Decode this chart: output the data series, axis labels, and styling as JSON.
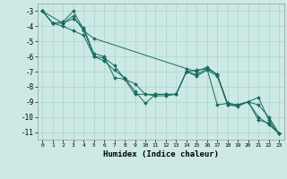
{
  "xlabel": "Humidex (Indice chaleur)",
  "ylabel": "",
  "xlim": [
    -0.5,
    23.5
  ],
  "ylim": [
    -11.5,
    -2.5
  ],
  "yticks": [
    -3,
    -4,
    -5,
    -6,
    -7,
    -8,
    -9,
    -10,
    -11
  ],
  "xticks": [
    0,
    1,
    2,
    3,
    4,
    5,
    6,
    7,
    8,
    9,
    10,
    11,
    12,
    13,
    14,
    15,
    16,
    17,
    18,
    19,
    20,
    21,
    22,
    23
  ],
  "bg_color": "#cce9e5",
  "line_color": "#1a6b5a",
  "grid_color": "#aad4cf",
  "lines": [
    {
      "x": [
        0,
        1,
        2,
        3,
        4,
        5,
        6,
        7,
        8,
        9,
        10,
        11,
        12,
        13,
        14,
        15,
        16,
        17,
        18,
        19,
        20,
        21,
        22,
        23
      ],
      "y": [
        -3,
        -3.8,
        -3.7,
        -3.0,
        -4.2,
        -6.0,
        -6.3,
        -6.9,
        -7.4,
        -8.3,
        -9.1,
        -8.5,
        -8.5,
        -8.5,
        -7.0,
        -7.3,
        -6.9,
        -7.3,
        -9.2,
        -9.2,
        -9.0,
        -8.7,
        -10.2,
        -11.1
      ]
    },
    {
      "x": [
        0,
        2,
        3,
        4,
        5,
        14,
        15,
        16,
        17,
        18,
        19,
        20,
        21,
        22,
        23
      ],
      "y": [
        -3,
        -3.8,
        -3.3,
        -4.3,
        -4.8,
        -6.8,
        -7.0,
        -6.7,
        -7.2,
        -9.1,
        -9.2,
        -9.0,
        -10.2,
        -10.4,
        -11.1
      ]
    },
    {
      "x": [
        0,
        1,
        2,
        3,
        4,
        5,
        6,
        7,
        8,
        9,
        10,
        11,
        12,
        13,
        14,
        15,
        16,
        17,
        18,
        19,
        20,
        21,
        22,
        23
      ],
      "y": [
        -3,
        -3.8,
        -4.0,
        -4.3,
        -4.6,
        -6.0,
        -6.1,
        -6.6,
        -7.5,
        -7.8,
        -8.5,
        -8.6,
        -8.6,
        -8.5,
        -7.0,
        -7.2,
        -6.8,
        -7.2,
        -9.2,
        -9.3,
        -9.0,
        -9.2,
        -10.0,
        -11.1
      ]
    },
    {
      "x": [
        0,
        1,
        2,
        3,
        4,
        5,
        6,
        7,
        8,
        9,
        10,
        11,
        12,
        13,
        14,
        15,
        16,
        17,
        18,
        19,
        20,
        21,
        22,
        23
      ],
      "y": [
        -3,
        -3.8,
        -3.8,
        -3.5,
        -4.1,
        -5.8,
        -6.0,
        -7.4,
        -7.5,
        -8.5,
        -8.5,
        -8.5,
        -8.5,
        -8.5,
        -7.0,
        -6.9,
        -6.8,
        -9.2,
        -9.1,
        -9.2,
        -9.0,
        -10.0,
        -10.5,
        -11.1
      ]
    }
  ]
}
